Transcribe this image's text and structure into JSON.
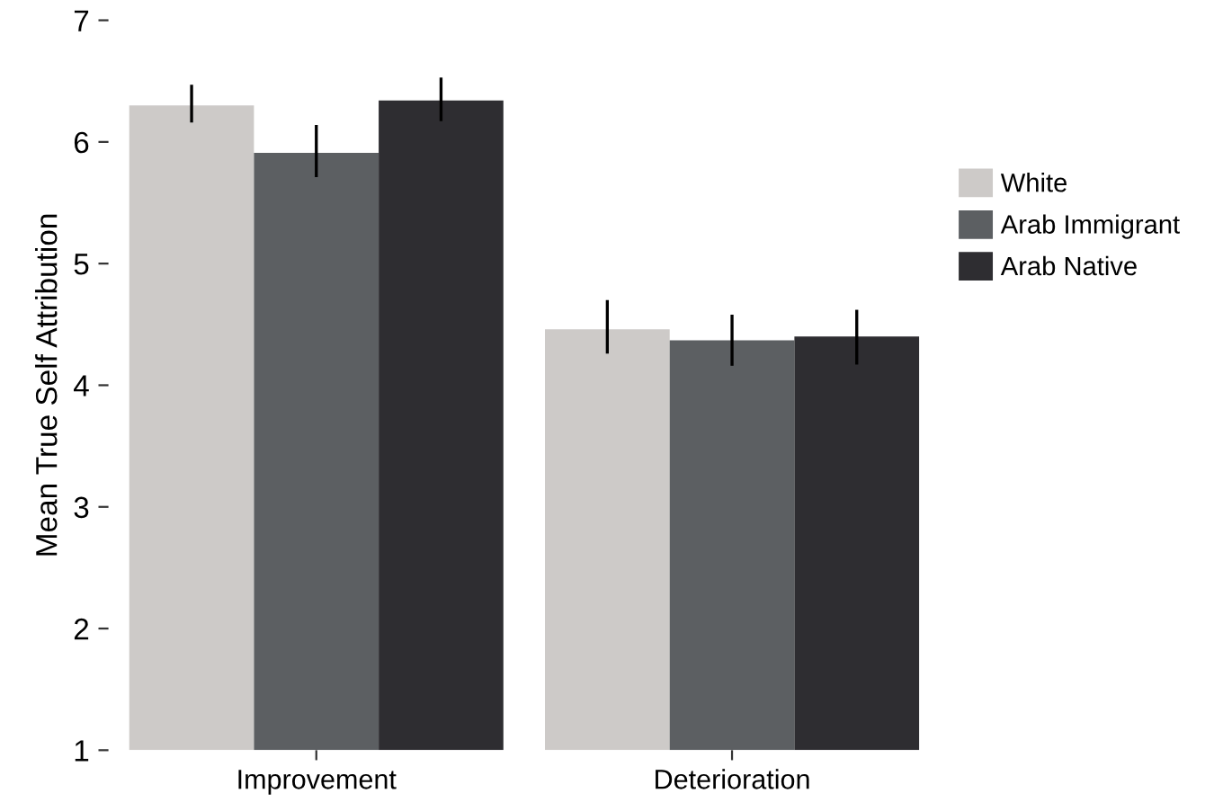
{
  "chart_data": {
    "type": "bar",
    "ylabel": "Mean True Self Attribution",
    "categories": [
      "Improvement",
      "Deterioration"
    ],
    "series": [
      {
        "name": "White",
        "color": "#cdcac8",
        "values": [
          6.3,
          4.46
        ],
        "errors": [
          [
            6.16,
            6.47
          ],
          [
            4.26,
            4.7
          ]
        ]
      },
      {
        "name": "Arab Immigrant",
        "color": "#5c5f62",
        "values": [
          5.91,
          4.37
        ],
        "errors": [
          [
            5.71,
            6.14
          ],
          [
            4.16,
            4.58
          ]
        ]
      },
      {
        "name": "Arab Native",
        "color": "#2e2d31",
        "values": [
          6.34,
          4.4
        ],
        "errors": [
          [
            6.17,
            6.53
          ],
          [
            4.17,
            4.62
          ]
        ]
      }
    ],
    "ylim": [
      1,
      7
    ],
    "yticks": [
      1,
      2,
      3,
      4,
      5,
      6,
      7
    ],
    "grid": false,
    "legend": "right"
  }
}
